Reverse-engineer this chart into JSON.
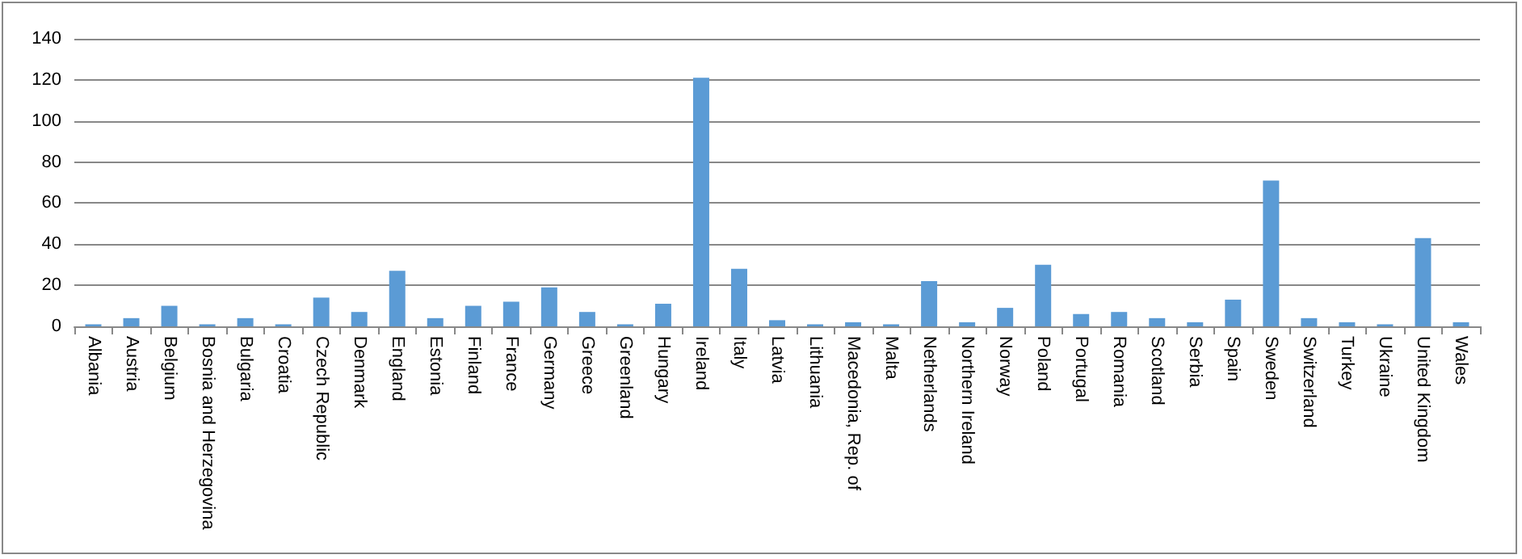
{
  "chart_data": {
    "type": "bar",
    "categories": [
      "Albania",
      "Austria",
      "Belgium",
      "Bosnia and Herzegovina",
      "Bulgaria",
      "Croatia",
      "Czech Republic",
      "Denmark",
      "England",
      "Estonia",
      "Finland",
      "France",
      "Germany",
      "Greece",
      "Greenland",
      "Hungary",
      "Ireland",
      "Italy",
      "Latvia",
      "Lithuania",
      "Macedonia, Rep. of",
      "Malta",
      "Netherlands",
      "Northern Ireland",
      "Norway",
      "Poland",
      "Portugal",
      "Romania",
      "Scotland",
      "Serbia",
      "Spain",
      "Sweden",
      "Switzerland",
      "Turkey",
      "Ukraine",
      "United Kingdom",
      "Wales"
    ],
    "values": [
      1,
      4,
      10,
      1,
      4,
      1,
      14,
      7,
      27,
      4,
      10,
      12,
      19,
      7,
      1,
      11,
      121,
      28,
      3,
      1,
      2,
      1,
      22,
      2,
      9,
      30,
      6,
      7,
      4,
      2,
      13,
      71,
      4,
      2,
      1,
      43,
      2
    ],
    "color": "#5b9bd5",
    "ylim": [
      0,
      140
    ],
    "yticks": [
      0,
      20,
      40,
      60,
      80,
      100,
      120,
      140
    ],
    "grid": "y"
  }
}
